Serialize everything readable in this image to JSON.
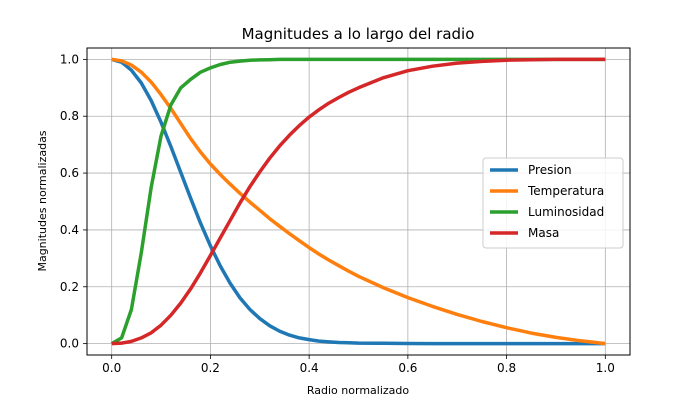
{
  "chart_data": {
    "type": "line",
    "title": "Magnitudes a lo largo del radio",
    "xlabel": "Radio normalizado",
    "ylabel": "Magnitudes normalizadas",
    "xlim": [
      -0.05,
      1.05
    ],
    "ylim": [
      -0.04,
      1.04
    ],
    "xticks": [
      0.0,
      0.2,
      0.4,
      0.6,
      0.8,
      1.0
    ],
    "xtick_labels": [
      "0.0",
      "0.2",
      "0.4",
      "0.6",
      "0.8",
      "1.0"
    ],
    "yticks": [
      0.0,
      0.2,
      0.4,
      0.6,
      0.8,
      1.0
    ],
    "ytick_labels": [
      "0.0",
      "0.2",
      "0.4",
      "0.6",
      "0.8",
      "1.0"
    ],
    "grid": true,
    "legend_position": "center-right",
    "x": [
      0.0,
      0.02,
      0.04,
      0.06,
      0.08,
      0.1,
      0.12,
      0.14,
      0.16,
      0.18,
      0.2,
      0.22,
      0.24,
      0.26,
      0.28,
      0.3,
      0.32,
      0.34,
      0.36,
      0.38,
      0.4,
      0.42,
      0.44,
      0.46,
      0.48,
      0.5,
      0.55,
      0.6,
      0.65,
      0.7,
      0.75,
      0.8,
      0.85,
      0.9,
      0.95,
      1.0
    ],
    "series": [
      {
        "name": "Presion",
        "color": "#1f77b4",
        "values": [
          1.0,
          0.99,
          0.962,
          0.917,
          0.855,
          0.779,
          0.693,
          0.602,
          0.511,
          0.424,
          0.344,
          0.273,
          0.212,
          0.161,
          0.12,
          0.088,
          0.063,
          0.044,
          0.03,
          0.02,
          0.014,
          0.009,
          0.006,
          0.004,
          0.003,
          0.002,
          0.001,
          0.0005,
          0.0002,
          0.0001,
          0.0,
          0.0,
          0.0,
          0.0,
          0.0,
          0.0
        ]
      },
      {
        "name": "Temperatura",
        "color": "#ff7f0e",
        "values": [
          1.0,
          0.995,
          0.98,
          0.955,
          0.92,
          0.876,
          0.827,
          0.774,
          0.721,
          0.674,
          0.632,
          0.595,
          0.561,
          0.529,
          0.498,
          0.469,
          0.44,
          0.413,
          0.387,
          0.362,
          0.338,
          0.315,
          0.294,
          0.274,
          0.255,
          0.237,
          0.197,
          0.162,
          0.131,
          0.103,
          0.078,
          0.056,
          0.037,
          0.022,
          0.01,
          0.0
        ]
      },
      {
        "name": "Luminosidad",
        "color": "#2ca02c",
        "values": [
          0.0,
          0.02,
          0.12,
          0.32,
          0.55,
          0.73,
          0.84,
          0.9,
          0.93,
          0.955,
          0.97,
          0.982,
          0.99,
          0.994,
          0.997,
          0.998,
          0.999,
          1.0,
          1.0,
          1.0,
          1.0,
          1.0,
          1.0,
          1.0,
          1.0,
          1.0,
          1.0,
          1.0,
          1.0,
          1.0,
          1.0,
          1.0,
          1.0,
          1.0,
          1.0,
          1.0
        ]
      },
      {
        "name": "Masa",
        "color": "#d62728",
        "values": [
          0.0,
          0.002,
          0.008,
          0.02,
          0.038,
          0.065,
          0.1,
          0.143,
          0.193,
          0.249,
          0.31,
          0.372,
          0.434,
          0.495,
          0.552,
          0.604,
          0.652,
          0.695,
          0.733,
          0.767,
          0.797,
          0.823,
          0.846,
          0.866,
          0.884,
          0.9,
          0.935,
          0.96,
          0.976,
          0.987,
          0.993,
          0.997,
          0.999,
          1.0,
          1.0,
          1.0
        ]
      }
    ]
  }
}
